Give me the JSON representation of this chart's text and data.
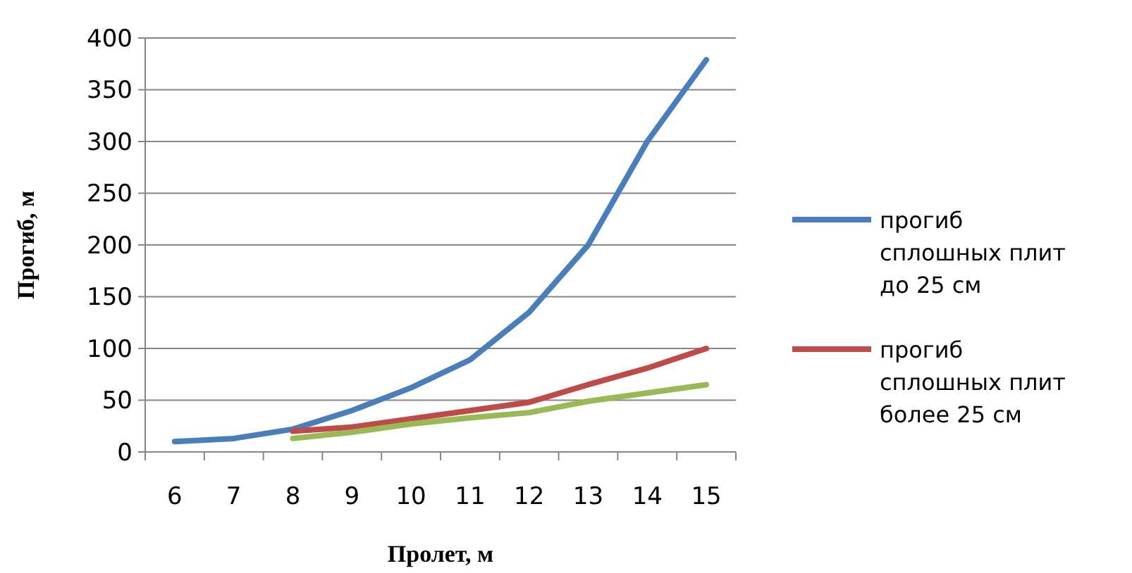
{
  "chart_data": {
    "type": "line",
    "xlabel": "Пролет,  м",
    "ylabel": "Прогиб,  м",
    "categories": [
      "6",
      "7",
      "8",
      "9",
      "10",
      "11",
      "12",
      "13",
      "14",
      "15"
    ],
    "series": [
      {
        "name": "прогиб сплошных плит до 25 см",
        "color": "#4a7ebb",
        "values": [
          10,
          13,
          22,
          40,
          62,
          89,
          135,
          200,
          300,
          379
        ]
      },
      {
        "name": "прогиб сплошных плит более 25 см",
        "color": "#be4b48",
        "values": [
          null,
          null,
          20,
          24,
          32,
          40,
          48,
          65,
          81,
          100
        ]
      },
      {
        "color": "#98b954",
        "values": [
          null,
          null,
          13,
          19,
          27,
          33,
          38,
          49,
          57,
          65
        ]
      }
    ],
    "ylim": [
      0,
      400
    ],
    "yticks": [
      0,
      50,
      100,
      150,
      200,
      250,
      300,
      350,
      400
    ],
    "grid": "y",
    "legend": "right",
    "marker": "none",
    "line_style": "solid"
  }
}
